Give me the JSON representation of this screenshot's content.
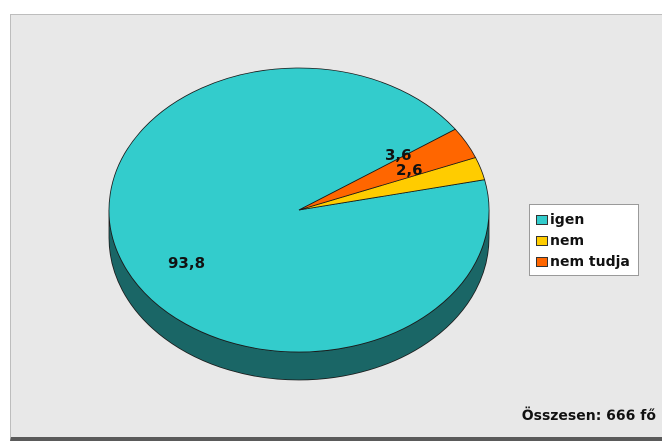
{
  "chart_data": {
    "type": "pie",
    "style": "3d",
    "categories": [
      "igen",
      "nem",
      "nem tudja"
    ],
    "values": [
      93.8,
      2.6,
      3.6
    ],
    "data_labels": [
      "93,8",
      "2,6",
      "3,6"
    ],
    "colors": [
      "#33cccc",
      "#ffcc00",
      "#ff6600"
    ],
    "title": "",
    "legend_position": "right",
    "footnote": "Összesen: 666 fő"
  }
}
